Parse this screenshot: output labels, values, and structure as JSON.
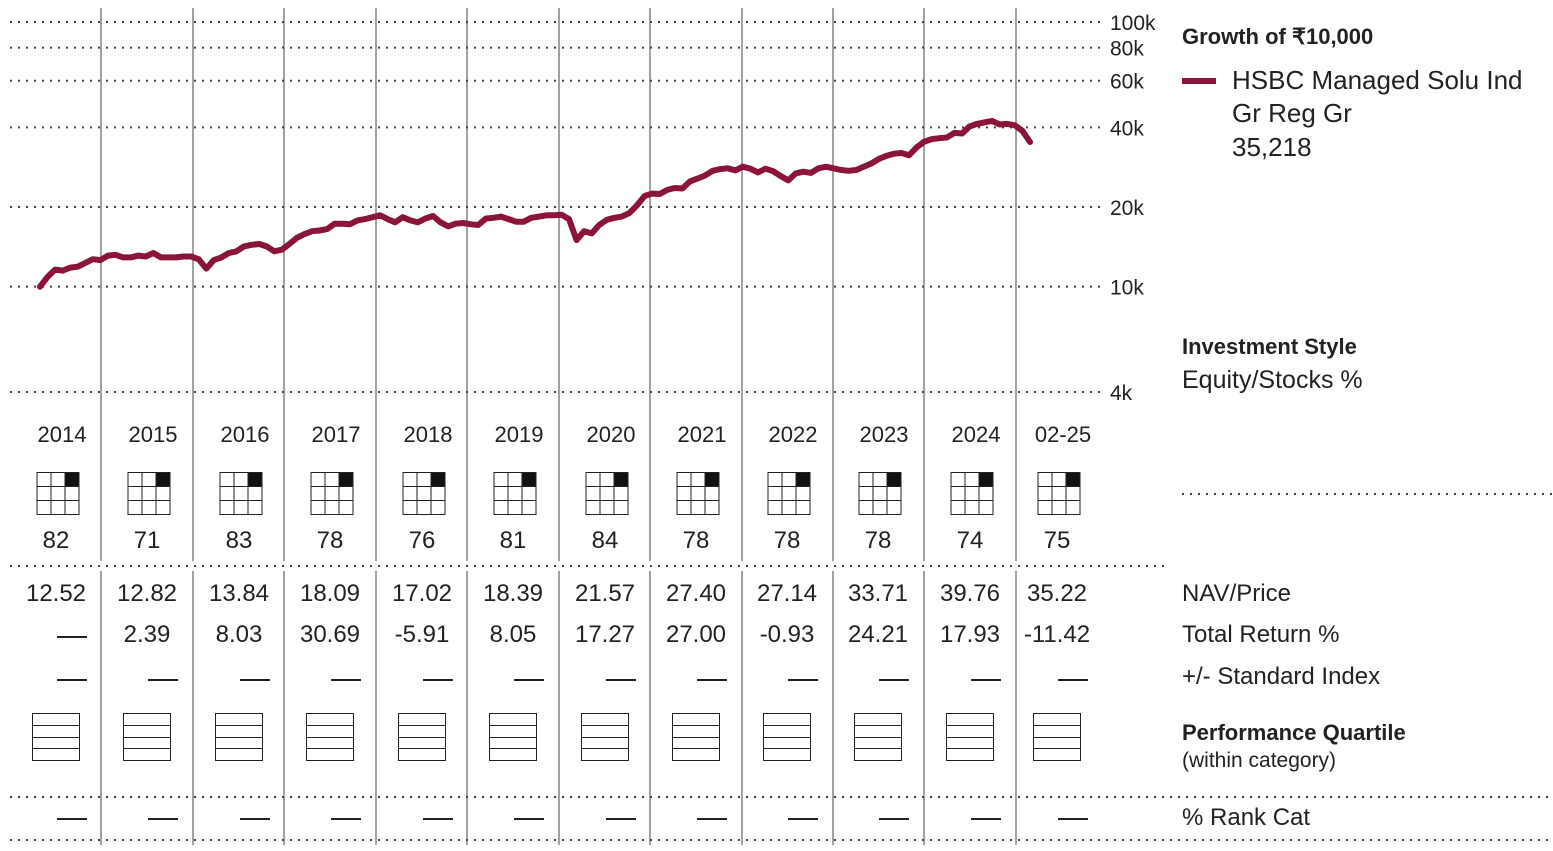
{
  "chart_data": {
    "type": "line",
    "title": "Growth of  ₹10,000",
    "y_scale": "log",
    "y_ticks": [
      "100k",
      "80k",
      "60k",
      "40k",
      "20k",
      "10k",
      "4k"
    ],
    "y_tick_values": [
      100000,
      80000,
      60000,
      40000,
      20000,
      10000,
      4000
    ],
    "ylim": [
      4000,
      100000
    ],
    "years": [
      "2014",
      "2015",
      "2016",
      "2017",
      "2018",
      "2019",
      "2020",
      "2021",
      "2022",
      "2023",
      "2024",
      "02-25"
    ],
    "series": [
      {
        "name": "HSBC Managed Solu Ind Gr Reg Gr",
        "end_value_label": "35,218",
        "color": "#8b1538",
        "values": [
          10000,
          10900,
          11600,
          11500,
          11800,
          11900,
          12300,
          12700,
          12600,
          13100,
          13200,
          12900,
          12900,
          13100,
          13000,
          13400,
          12900,
          12900,
          12900,
          13000,
          13000,
          12700,
          11700,
          12600,
          12900,
          13400,
          13600,
          14200,
          14400,
          14500,
          14200,
          13600,
          13800,
          14500,
          15300,
          15800,
          16200,
          16300,
          16500,
          17300,
          17300,
          17200,
          17800,
          18000,
          18300,
          18600,
          18000,
          17500,
          18300,
          17800,
          17500,
          18100,
          18500,
          17500,
          16900,
          17300,
          17400,
          17200,
          17100,
          18100,
          18200,
          18400,
          18000,
          17600,
          17600,
          18200,
          18400,
          18600,
          18600,
          18700,
          18000,
          15000,
          16200,
          15900,
          17100,
          17900,
          18200,
          18400,
          19000,
          20300,
          22000,
          22500,
          22400,
          23200,
          23600,
          23500,
          25000,
          25600,
          26300,
          27400,
          27800,
          28000,
          27500,
          28400,
          27900,
          27000,
          27900,
          27300,
          26200,
          25200,
          26800,
          27200,
          26900,
          28000,
          28400,
          28000,
          27600,
          27400,
          27600,
          28400,
          29200,
          30400,
          31200,
          31800,
          32000,
          31400,
          33600,
          35300,
          36100,
          36400,
          36600,
          38100,
          37900,
          40300,
          41200,
          41800,
          42300,
          41000,
          41200,
          40700,
          38800,
          35218
        ]
      }
    ],
    "legend_position": "right",
    "grid": true
  },
  "investment_style": {
    "title": "Investment Style",
    "subtitle": "Equity/Stocks %",
    "values": [
      "82",
      "71",
      "83",
      "78",
      "76",
      "81",
      "84",
      "78",
      "78",
      "78",
      "74",
      "75"
    ]
  },
  "table": {
    "rows": [
      {
        "label": "NAV/Price",
        "values": [
          "12.52",
          "12.82",
          "13.84",
          "18.09",
          "17.02",
          "18.39",
          "21.57",
          "27.40",
          "27.14",
          "33.71",
          "39.76",
          "35.22"
        ]
      },
      {
        "label": "Total Return %",
        "values": [
          "—",
          "2.39",
          "8.03",
          "30.69",
          "-5.91",
          "8.05",
          "17.27",
          "27.00",
          "-0.93",
          "24.21",
          "17.93",
          "-11.42"
        ]
      },
      {
        "label": "+/- Standard Index",
        "values": [
          "—",
          "—",
          "—",
          "—",
          "—",
          "—",
          "—",
          "—",
          "—",
          "—",
          "—",
          "—"
        ]
      }
    ]
  },
  "performance_quartile": {
    "title": "Performance Quartile",
    "subtitle": "(within category)"
  },
  "rank_cat": {
    "label": "% Rank Cat",
    "values": [
      "—",
      "—",
      "—",
      "—",
      "—",
      "—",
      "—",
      "—",
      "—",
      "—",
      "—",
      "—"
    ]
  }
}
